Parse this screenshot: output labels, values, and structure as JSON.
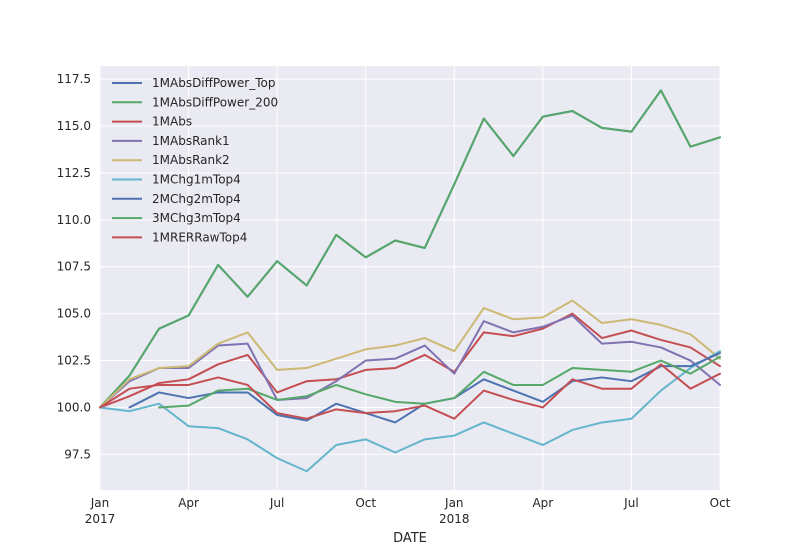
{
  "chart_data": {
    "type": "line",
    "title": "",
    "xlabel": "DATE",
    "ylabel": "",
    "x": [
      "2017-01",
      "2017-02",
      "2017-03",
      "2017-04",
      "2017-05",
      "2017-06",
      "2017-07",
      "2017-08",
      "2017-09",
      "2017-10",
      "2017-11",
      "2017-12",
      "2018-01",
      "2018-02",
      "2018-03",
      "2018-04",
      "2018-05",
      "2018-06",
      "2018-07",
      "2018-08",
      "2018-09",
      "2018-10"
    ],
    "xlim": [
      "2017-01",
      "2018-10"
    ],
    "ylim": [
      95.6,
      118.2
    ],
    "x_ticks": [
      {
        "date": "2017-01",
        "label": "Jan",
        "label2": "2017"
      },
      {
        "date": "2017-04",
        "label": "Apr"
      },
      {
        "date": "2017-07",
        "label": "Jul"
      },
      {
        "date": "2017-10",
        "label": "Oct"
      },
      {
        "date": "2018-01",
        "label": "Jan",
        "label2": "2018"
      },
      {
        "date": "2018-04",
        "label": "Apr"
      },
      {
        "date": "2018-07",
        "label": "Jul"
      },
      {
        "date": "2018-10",
        "label": "Oct"
      }
    ],
    "y_ticks": [
      {
        "value": 97.5,
        "label": "97.5"
      },
      {
        "value": 100.0,
        "label": "100.0"
      },
      {
        "value": 102.5,
        "label": "102.5"
      },
      {
        "value": 105.0,
        "label": "105.0"
      },
      {
        "value": 107.5,
        "label": "107.5"
      },
      {
        "value": 110.0,
        "label": "110.0"
      },
      {
        "value": 112.5,
        "label": "112.5"
      },
      {
        "value": 115.0,
        "label": "115.0"
      },
      {
        "value": 117.5,
        "label": "117.5"
      }
    ],
    "grid": true,
    "legend_position": "top-left",
    "background": "#eaeaf2",
    "series": [
      {
        "name": "1MAbsDiffPower_Top",
        "color": "#4c72b0",
        "values": [
          100.0,
          101.7,
          104.2,
          104.9,
          107.6,
          105.9,
          107.8,
          106.5,
          109.2,
          108.0,
          108.9,
          108.5,
          111.9,
          115.4,
          113.4,
          115.5,
          115.8,
          114.9,
          114.7,
          116.9,
          113.9,
          114.4
        ]
      },
      {
        "name": "1MAbsDiffPower_200",
        "color": "#55a868",
        "values": [
          100.0,
          101.7,
          104.2,
          104.9,
          107.6,
          105.9,
          107.8,
          106.5,
          109.2,
          108.0,
          108.9,
          108.5,
          111.9,
          115.4,
          113.4,
          115.5,
          115.8,
          114.9,
          114.7,
          116.9,
          113.9,
          114.4
        ]
      },
      {
        "name": "1MAbs",
        "color": "#c44e52",
        "values": [
          100.0,
          100.6,
          101.3,
          101.5,
          102.3,
          102.8,
          100.8,
          101.4,
          101.5,
          102.0,
          102.1,
          102.8,
          101.9,
          104.0,
          103.8,
          104.2,
          105.0,
          103.7,
          104.1,
          103.6,
          103.2,
          102.2
        ]
      },
      {
        "name": "1MAbsRank1",
        "color": "#8172b2",
        "values": [
          100.0,
          101.4,
          102.1,
          102.1,
          103.3,
          103.4,
          100.4,
          100.5,
          101.4,
          102.5,
          102.6,
          103.3,
          101.8,
          104.6,
          104.0,
          104.3,
          104.9,
          103.4,
          103.5,
          103.2,
          102.5,
          101.2
        ]
      },
      {
        "name": "1MAbsRank2",
        "color": "#ccb974",
        "values": [
          100.0,
          101.5,
          102.1,
          102.2,
          103.4,
          104.0,
          102.0,
          102.1,
          102.6,
          103.1,
          103.3,
          103.7,
          103.0,
          105.3,
          104.7,
          104.8,
          105.7,
          104.5,
          104.7,
          104.4,
          103.9,
          102.6
        ]
      },
      {
        "name": "1MChg1mTop4",
        "color": "#64b5cd",
        "values": [
          100.0,
          99.8,
          100.2,
          99.0,
          98.9,
          98.3,
          97.3,
          96.6,
          98.0,
          98.3,
          97.6,
          98.3,
          98.5,
          99.2,
          98.6,
          98.0,
          98.8,
          99.2,
          99.4,
          100.9,
          102.1,
          103.0
        ]
      },
      {
        "name": "2MChg2mTop4",
        "color": "#4c72b0",
        "values": [
          null,
          100.0,
          100.8,
          100.5,
          100.8,
          100.8,
          99.6,
          99.3,
          100.2,
          99.7,
          99.2,
          100.2,
          100.5,
          101.5,
          100.9,
          100.3,
          101.4,
          101.6,
          101.4,
          102.2,
          102.2,
          102.9
        ]
      },
      {
        "name": "3MChg3mTop4",
        "color": "#55a868",
        "values": [
          null,
          null,
          100.0,
          100.1,
          100.9,
          101.0,
          100.4,
          100.6,
          101.2,
          100.7,
          100.3,
          100.2,
          100.5,
          101.9,
          101.2,
          101.2,
          102.1,
          102.0,
          101.9,
          102.5,
          101.8,
          102.7
        ]
      },
      {
        "name": "1MRERRawTop4",
        "color": "#c44e52",
        "values": [
          100.0,
          101.0,
          101.2,
          101.2,
          101.6,
          101.2,
          99.7,
          99.4,
          99.9,
          99.7,
          99.8,
          100.1,
          99.4,
          100.9,
          100.4,
          100.0,
          101.5,
          101.0,
          101.0,
          102.3,
          101.0,
          101.8
        ]
      }
    ]
  }
}
